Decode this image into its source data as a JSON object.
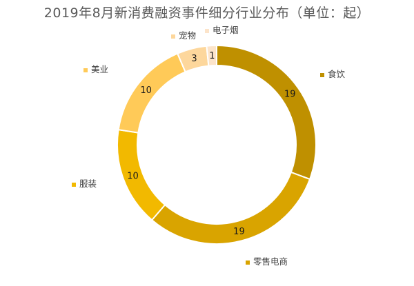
{
  "chart_data": {
    "type": "pie",
    "variant": "doughnut",
    "title": "2019年8月新消费融资事件细分行业分布（单位：起）",
    "categories": [
      "食饮",
      "零售电商",
      "服装",
      "美业",
      "宠物",
      "电子烟"
    ],
    "values": [
      19,
      19,
      10,
      10,
      3,
      1
    ],
    "colors": [
      "#BF9000",
      "#D9A400",
      "#F2B900",
      "#FFCA58",
      "#FDD79C",
      "#FCE4CA"
    ],
    "start_at": "12 o'clock",
    "direction": "clockwise",
    "legend": "labels-outside"
  }
}
